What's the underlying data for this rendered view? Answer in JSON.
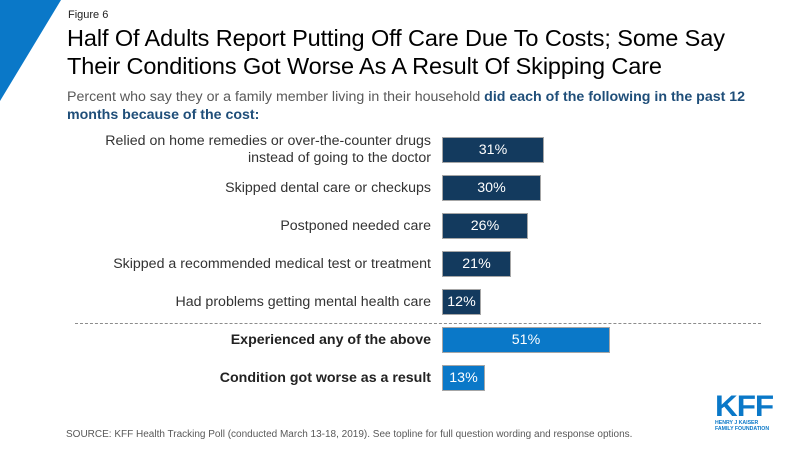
{
  "figure_label": "Figure 6",
  "title_line1": "Half Of Adults Report Putting Off Care Due To Costs; Some Say",
  "title_line2": "Their Conditions Got Worse As A Result Of Skipping Care",
  "subtitle_plain": "Percent who say they or a family member living in their household ",
  "subtitle_bold": "did each of the following in the past 12 months because of the cost:",
  "source": "SOURCE: KFF Health Tracking Poll (conducted March 13-18, 2019). See topline for full question wording and response options.",
  "logo": {
    "main": "KFF",
    "sub_line1": "HENRY J KAISER",
    "sub_line2": "FAMILY FOUNDATION"
  },
  "colors": {
    "dark_bar": "#133a5e",
    "light_bar": "#0a78c8",
    "accent": "#0a78c8",
    "subtitle_bold": "#1f4e79"
  },
  "chart_data": {
    "type": "bar",
    "orientation": "horizontal",
    "title": "Half Of Adults Report Putting Off Care Due To Costs; Some Say Their Conditions Got Worse As A Result Of Skipping Care",
    "xlabel": "",
    "ylabel": "",
    "unit": "%",
    "xlim": [
      0,
      100
    ],
    "grid": false,
    "legend": "none",
    "categories": [
      "Relied on home remedies or over-the-counter drugs instead of going to the doctor",
      "Skipped dental care or checkups",
      "Postponed needed care",
      "Skipped a recommended medical test or treatment",
      "Had problems getting mental health care",
      "Experienced any of the above",
      "Condition got worse as a result"
    ],
    "category_lines": [
      [
        "Relied on home remedies or over-the-counter drugs",
        "instead of going to the doctor"
      ],
      [
        "Skipped dental care or checkups"
      ],
      [
        "Postponed needed care"
      ],
      [
        "Skipped a recommended medical test or treatment"
      ],
      [
        "Had problems getting mental health care"
      ],
      [
        "Experienced any of the above"
      ],
      [
        "Condition got worse as a result"
      ]
    ],
    "values": [
      31,
      30,
      26,
      21,
      12,
      51,
      13
    ],
    "value_labels": [
      "31%",
      "30%",
      "26%",
      "21%",
      "12%",
      "51%",
      "13%"
    ],
    "group": [
      "detail",
      "detail",
      "detail",
      "detail",
      "detail",
      "summary",
      "summary"
    ],
    "annotations": [
      "Dashed divider separates individual items from summary rows"
    ]
  }
}
